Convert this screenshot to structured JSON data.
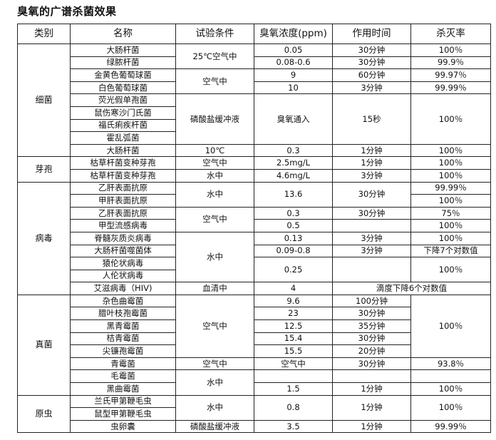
{
  "title": "臭氧的广谱杀菌效果",
  "headers": [
    "类别",
    "名称",
    "试验条件",
    "臭氧浓度(ppm)",
    "作用时间",
    "杀灭率"
  ],
  "rows": [
    [
      {
        "t": "细菌",
        "rs": 9,
        "cat": true
      },
      {
        "t": "大肠杆菌"
      },
      {
        "t": "25℃空气中",
        "rs": 2
      },
      {
        "t": "0.05"
      },
      {
        "t": "30分钟"
      },
      {
        "t": "100％"
      }
    ],
    [
      {
        "t": "绿脓杆菌"
      },
      {
        "t": "0.08-0.6"
      },
      {
        "t": "30分钟"
      },
      {
        "t": "99.9％"
      }
    ],
    [
      {
        "t": "金黄色葡萄球菌"
      },
      {
        "t": "空气中",
        "rs": 2
      },
      {
        "t": "9"
      },
      {
        "t": "60分钟"
      },
      {
        "t": "99.97％"
      }
    ],
    [
      {
        "t": "白色葡萄球菌"
      },
      {
        "t": "10"
      },
      {
        "t": "3分钟"
      },
      {
        "t": "99.99％"
      }
    ],
    [
      {
        "t": "荧光假单孢菌"
      },
      {
        "t": "磷酸盐缓冲液",
        "rs": 4
      },
      {
        "t": "臭氧通入",
        "rs": 4
      },
      {
        "t": "15秒",
        "rs": 4
      },
      {
        "t": "100％",
        "rs": 4
      }
    ],
    [
      {
        "t": "鼠伤寒沙门氏菌"
      }
    ],
    [
      {
        "t": "福氏痢疾杆菌"
      }
    ],
    [
      {
        "t": "霍乱弧菌"
      }
    ],
    [
      {
        "t": "大肠杆菌"
      },
      {
        "t": "10℃"
      },
      {
        "t": "0.3"
      },
      {
        "t": "1分钟"
      },
      {
        "t": "100％"
      }
    ],
    [
      {
        "t": "芽孢",
        "rs": 2,
        "cat": true
      },
      {
        "t": "枯草杆菌变种芽孢"
      },
      {
        "t": "空气中"
      },
      {
        "t": "2.5mg/L"
      },
      {
        "t": "1分钟"
      },
      {
        "t": "100％"
      }
    ],
    [
      {
        "t": "枯草杆菌变种芽孢"
      },
      {
        "t": "水中"
      },
      {
        "t": "4.6mg/L"
      },
      {
        "t": "3分钟"
      },
      {
        "t": "100％"
      }
    ],
    [
      {
        "t": "病毒",
        "rs": 9,
        "cat": true
      },
      {
        "t": "乙肝表面抗原"
      },
      {
        "t": "水中",
        "rs": 2
      },
      {
        "t": "13.6",
        "rs": 2
      },
      {
        "t": "30分钟",
        "rs": 2
      },
      {
        "t": "99.99％"
      }
    ],
    [
      {
        "t": "甲肝表面抗原"
      },
      {
        "t": "100％"
      }
    ],
    [
      {
        "t": "乙肝表面抗原"
      },
      {
        "t": "空气中",
        "rs": 2
      },
      {
        "t": "0.3"
      },
      {
        "t": "30分钟"
      },
      {
        "t": "75％"
      }
    ],
    [
      {
        "t": "甲型流感病毒"
      },
      {
        "t": "0.5"
      },
      {
        "t": ""
      },
      {
        "t": "100％"
      }
    ],
    [
      {
        "t": "脊髓灰质炎病毒"
      },
      {
        "t": "水中",
        "rs": 4
      },
      {
        "t": "0.13"
      },
      {
        "t": "3分钟"
      },
      {
        "t": "100％"
      }
    ],
    [
      {
        "t": "大肠杆菌噬菌体"
      },
      {
        "t": "0.09-0.8"
      },
      {
        "t": "3分钟"
      },
      {
        "t": "下降7个对数值"
      }
    ],
    [
      {
        "t": "猿伦状病毒"
      },
      {
        "t": "0.25",
        "rs": 2
      },
      {
        "t": "",
        "rs": 2
      },
      {
        "t": "100％",
        "rs": 2
      }
    ],
    [
      {
        "t": "人伦状病毒"
      }
    ],
    [
      {
        "t": "艾滋病毒（HIV)"
      },
      {
        "t": "血清中"
      },
      {
        "t": "4"
      },
      {
        "t": "滴度下降6个对数值",
        "cs": 2
      }
    ],
    [
      {
        "t": "真菌",
        "rs": 8,
        "cat": true
      },
      {
        "t": "杂色曲霉菌"
      },
      {
        "t": "空气中",
        "rs": 5
      },
      {
        "t": "9.6"
      },
      {
        "t": "100分钟"
      },
      {
        "t": "100％",
        "rs": 5
      }
    ],
    [
      {
        "t": "腊叶枝孢霉菌"
      },
      {
        "t": "23"
      },
      {
        "t": "30分钟"
      }
    ],
    [
      {
        "t": "黑青霉菌"
      },
      {
        "t": "12.5"
      },
      {
        "t": "35分钟"
      }
    ],
    [
      {
        "t": "桔青霉菌"
      },
      {
        "t": "15.4"
      },
      {
        "t": "30分钟"
      }
    ],
    [
      {
        "t": "尖镰孢霉菌"
      },
      {
        "t": "15.5"
      },
      {
        "t": "20分钟"
      }
    ],
    [
      {
        "t": "青霉菌"
      },
      {
        "t": "空气中"
      },
      {
        "t": "空气中"
      },
      {
        "t": "30分钟"
      },
      {
        "t": "93.8％"
      }
    ],
    [
      {
        "t": "毛霉菌"
      },
      {
        "t": "水中",
        "rs": 2
      },
      {
        "t": ""
      },
      {
        "t": ""
      },
      {
        "t": ""
      }
    ],
    [
      {
        "t": "黑曲霉菌"
      },
      {
        "t": "1.5"
      },
      {
        "t": "1分钟"
      },
      {
        "t": "100％"
      }
    ],
    [
      {
        "t": "原虫",
        "rs": 3,
        "cat": true
      },
      {
        "t": "兰氏甲第鞭毛虫"
      },
      {
        "t": "水中",
        "rs": 2
      },
      {
        "t": "0.8",
        "rs": 2
      },
      {
        "t": "1分钟",
        "rs": 2
      },
      {
        "t": "100％",
        "rs": 2
      }
    ],
    [
      {
        "t": "鼠型甲第鞭毛虫"
      }
    ],
    [
      {
        "t": "虫卵囊"
      },
      {
        "t": "磷酸盐缓冲液"
      },
      {
        "t": "3.5"
      },
      {
        "t": "1分钟"
      },
      {
        "t": "99.99％"
      }
    ]
  ]
}
